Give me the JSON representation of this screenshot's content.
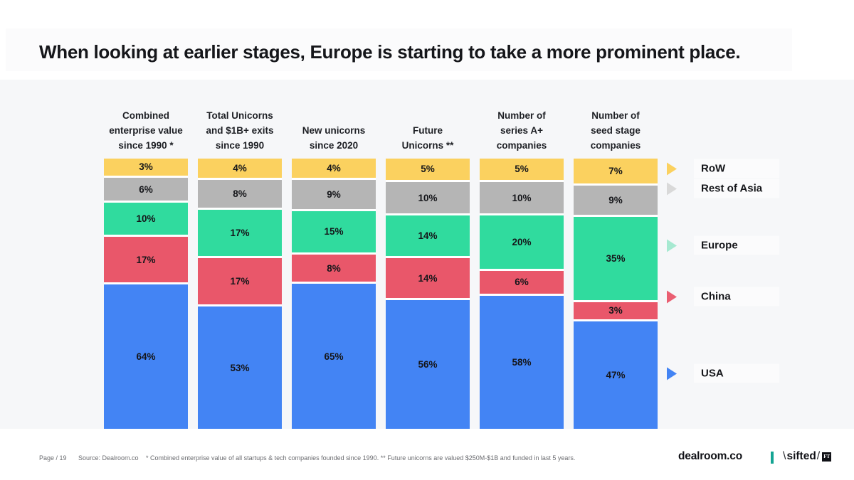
{
  "title": "When looking at earlier stages, Europe is starting to take a more prominent place.",
  "chart_data": {
    "type": "bar",
    "subtype": "stacked-percentage-columns",
    "unit": "%",
    "value_suffix": "%",
    "legend_position": "right",
    "grid": false,
    "categories": [
      "Combined\nenterprise value\nsince 1990 *",
      "Total Unicorns\nand $1B+ exits\nsince 1990",
      "New unicorns\nsince 2020",
      "Future\nUnicorns **",
      "Number of\nseries A+\ncompanies",
      "Number of\nseed stage\ncompanies"
    ],
    "series": [
      {
        "name": "RoW",
        "color": "#fbd15f",
        "arrow_color": "#fbd15f",
        "values": [
          3,
          4,
          4,
          5,
          5,
          7
        ]
      },
      {
        "name": "Rest of Asia",
        "color": "#b5b5b5",
        "arrow_color": "#d9d9d9",
        "values": [
          6,
          8,
          9,
          10,
          10,
          9
        ]
      },
      {
        "name": "Europe",
        "color": "#30db9e",
        "arrow_color": "#a6e9d1",
        "values": [
          10,
          17,
          15,
          14,
          20,
          35
        ]
      },
      {
        "name": "China",
        "color": "#e9576a",
        "arrow_color": "#ea5f72",
        "values": [
          17,
          17,
          8,
          14,
          6,
          3
        ]
      },
      {
        "name": "USA",
        "color": "#4384f4",
        "arrow_color": "#4384f4",
        "values": [
          64,
          53,
          65,
          56,
          58,
          47
        ]
      }
    ]
  },
  "footer": {
    "page": "Page / 19",
    "source": "Source: Dealroom.co",
    "note": "* Combined enterprise value of all startups & tech companies founded since 1990. **  Future unicorns are valued $250M-$1B and funded in last 5 years.",
    "dealroom_logo": "dealroom.co",
    "sifted_name": "sifted",
    "ft_badge": "FT"
  }
}
